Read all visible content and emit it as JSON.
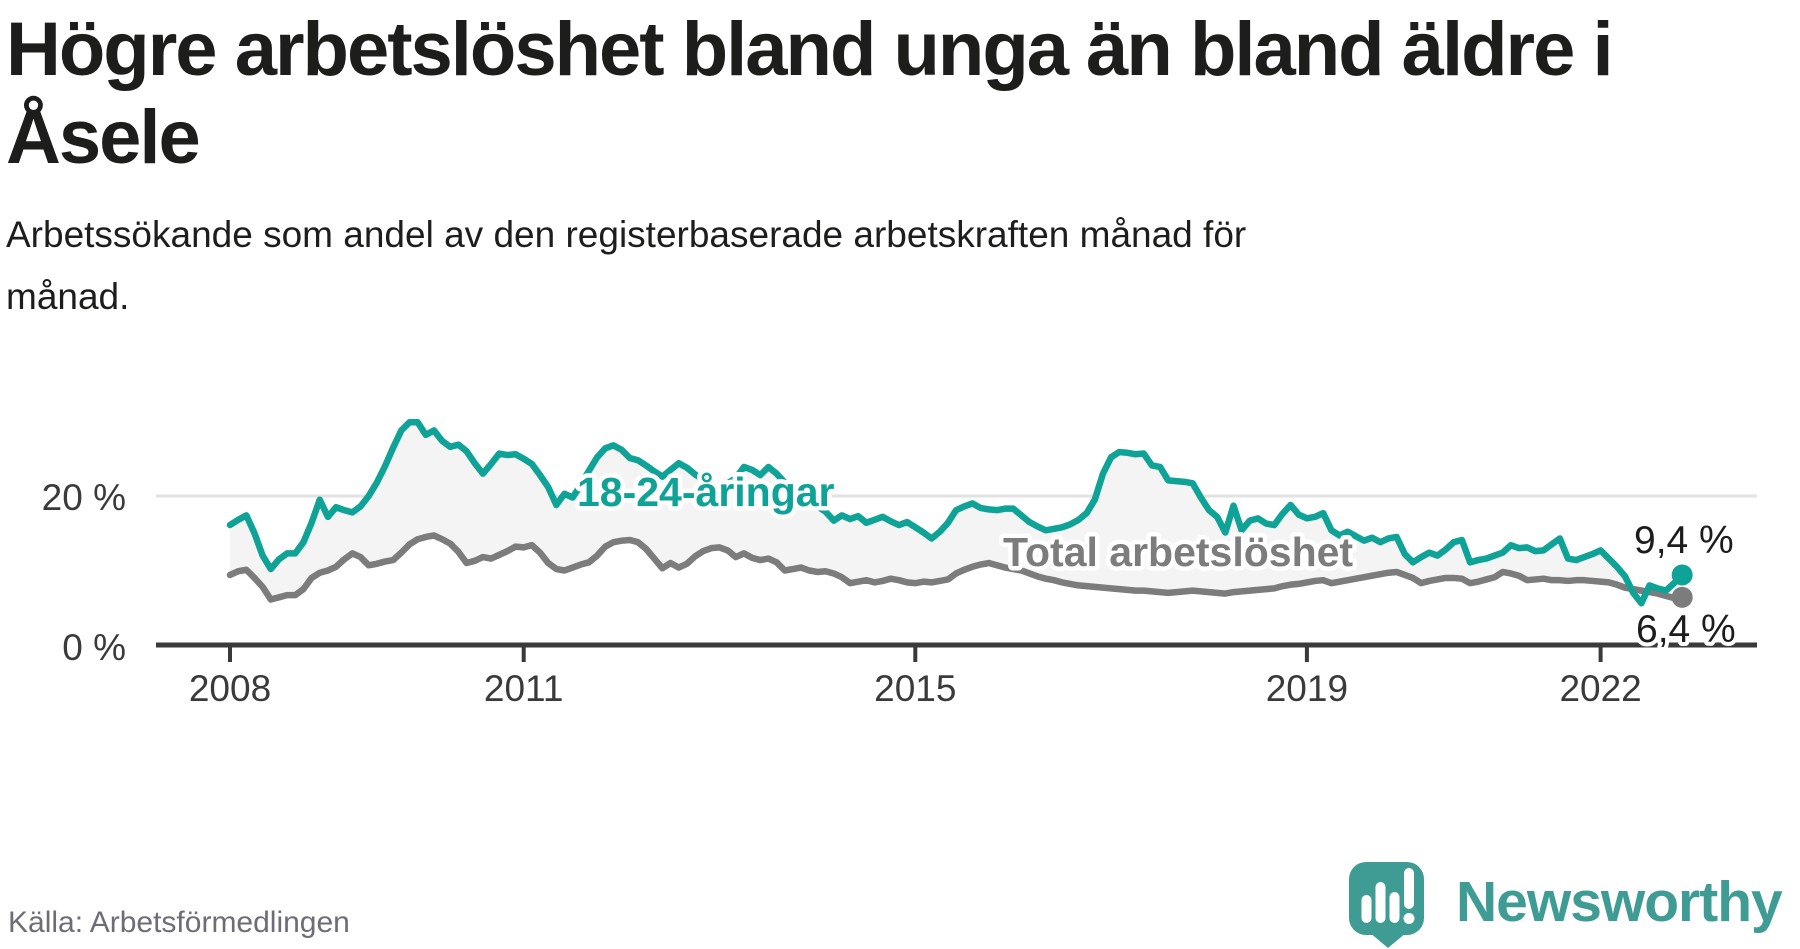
{
  "header": {
    "title_line1": "Högre arbetslöshet bland unga än bland äldre i",
    "title_line2": "Åsele",
    "subtitle_line1": "Arbetssökande som andel av den registerbaserade arbetskraften månad för",
    "subtitle_line2": "månad."
  },
  "footer": {
    "source": "Källa: Arbetsförmedlingen",
    "brand": "Newsworthy"
  },
  "colors": {
    "youth_teal": "#0fa296",
    "total_gray": "#7c7c7c",
    "band_fill": "#f4f4f4",
    "gridline": "#e2e2e2",
    "axis": "#3a3a3a",
    "text_dark": "#1d1d1b",
    "end_label": "#1c1c1c",
    "source_gray": "#6d6d77",
    "logo_teal": "#3f9c95"
  },
  "chart_data": {
    "type": "line",
    "title": "Högre arbetslöshet bland unga än bland äldre i Åsele",
    "subtitle": "Arbetssökande som andel av den registerbaserade arbetskraften månad för månad.",
    "unit": "percent of registered labour force",
    "frequency": "monthly",
    "x_start": "2008-01",
    "x_end": "2022-11",
    "grid": "single horizontal gridline at 20 %",
    "legend_position": "inline labels on lines",
    "ylim": [
      0,
      32
    ],
    "x_ticks": [
      {
        "year": 2008,
        "label": "2008"
      },
      {
        "year": 2011,
        "label": "2011"
      },
      {
        "year": 2015,
        "label": "2015"
      },
      {
        "year": 2019,
        "label": "2019"
      },
      {
        "year": 2022,
        "label": "2022"
      }
    ],
    "y_ticks": [
      {
        "value": 20,
        "label": "20 %"
      },
      {
        "value": 0,
        "label": "0 %"
      }
    ],
    "series": [
      {
        "name": "18-24-åringar",
        "color": "#0fa296",
        "end_value": 9.4,
        "end_label": "9,4 %",
        "values": [
          16.1,
          16.8,
          17.4,
          15.0,
          12.0,
          10.2,
          11.5,
          12.3,
          12.3,
          13.8,
          16.4,
          19.5,
          17.2,
          18.5,
          18.1,
          17.8,
          18.6,
          20.0,
          21.8,
          24.0,
          26.5,
          28.8,
          29.9,
          29.9,
          28.2,
          28.8,
          27.4,
          26.6,
          26.9,
          26.0,
          24.4,
          23.0,
          24.3,
          25.7,
          25.5,
          25.6,
          25.0,
          24.3,
          22.8,
          21.2,
          18.8,
          20.3,
          19.8,
          21.5,
          23.4,
          25.2,
          26.4,
          26.8,
          26.2,
          25.1,
          24.8,
          24.1,
          23.3,
          22.6,
          23.5,
          24.4,
          23.8,
          22.9,
          22.2,
          21.6,
          21.0,
          21.7,
          22.4,
          23.9,
          23.5,
          22.8,
          23.9,
          23.0,
          21.8,
          20.9,
          20.1,
          19.4,
          18.6,
          17.9,
          16.7,
          17.4,
          16.9,
          17.3,
          16.4,
          16.8,
          17.2,
          16.6,
          16.1,
          16.5,
          15.8,
          15.1,
          14.3,
          15.2,
          16.4,
          18.1,
          18.6,
          19.0,
          18.4,
          18.2,
          18.1,
          18.3,
          18.3,
          17.4,
          16.5,
          15.9,
          15.4,
          15.6,
          15.8,
          16.2,
          16.8,
          17.7,
          19.5,
          23.0,
          25.2,
          25.9,
          25.8,
          25.6,
          25.7,
          24.1,
          23.9,
          22.1,
          22.0,
          21.9,
          21.7,
          19.8,
          18.1,
          17.2,
          15.1,
          18.7,
          15.4,
          16.7,
          17.0,
          16.3,
          16.1,
          17.6,
          18.8,
          17.5,
          17.0,
          17.2,
          17.7,
          15.4,
          14.7,
          15.2,
          14.6,
          14.0,
          14.4,
          13.8,
          14.3,
          14.5,
          12.2,
          11.1,
          11.8,
          12.4,
          12.0,
          12.8,
          13.8,
          14.1,
          11.1,
          11.4,
          11.6,
          12.0,
          12.4,
          13.4,
          13.0,
          13.1,
          12.6,
          12.7,
          13.5,
          14.3,
          11.6,
          11.4,
          11.8,
          12.2,
          12.7,
          11.6,
          10.5,
          9.2,
          7.0,
          5.6,
          8.0,
          7.6,
          7.3,
          8.3,
          9.4
        ]
      },
      {
        "name": "Total arbetslöshet",
        "color": "#7c7c7c",
        "end_value": 6.4,
        "end_label": "6,4 %",
        "values": [
          9.4,
          9.9,
          10.1,
          9.0,
          7.8,
          6.1,
          6.4,
          6.7,
          6.7,
          7.5,
          9.0,
          9.7,
          10.0,
          10.5,
          11.5,
          12.3,
          11.8,
          10.7,
          10.9,
          11.2,
          11.4,
          12.4,
          13.5,
          14.2,
          14.5,
          14.7,
          14.2,
          13.6,
          12.5,
          11.0,
          11.3,
          11.8,
          11.6,
          12.1,
          12.6,
          13.2,
          13.1,
          13.4,
          12.4,
          11.0,
          10.2,
          10.0,
          10.4,
          10.8,
          11.1,
          12.0,
          13.2,
          13.8,
          14.0,
          14.1,
          13.8,
          12.9,
          11.6,
          10.3,
          11.0,
          10.4,
          10.9,
          11.9,
          12.6,
          13.0,
          13.1,
          12.7,
          11.8,
          12.3,
          11.7,
          11.4,
          11.6,
          11.1,
          10.0,
          10.2,
          10.4,
          10.0,
          9.8,
          9.9,
          9.6,
          9.1,
          8.3,
          8.5,
          8.7,
          8.4,
          8.6,
          8.9,
          8.7,
          8.4,
          8.3,
          8.5,
          8.4,
          8.6,
          8.8,
          9.6,
          10.1,
          10.5,
          10.8,
          11.0,
          10.7,
          10.4,
          10.2,
          10.0,
          9.6,
          9.2,
          8.9,
          8.7,
          8.4,
          8.2,
          8.0,
          7.9,
          7.8,
          7.7,
          7.6,
          7.5,
          7.4,
          7.3,
          7.3,
          7.2,
          7.1,
          7.0,
          7.1,
          7.2,
          7.3,
          7.2,
          7.1,
          7.0,
          6.9,
          7.1,
          7.2,
          7.3,
          7.4,
          7.5,
          7.6,
          7.9,
          8.1,
          8.2,
          8.4,
          8.6,
          8.7,
          8.3,
          8.5,
          8.7,
          8.9,
          9.1,
          9.3,
          9.5,
          9.7,
          9.8,
          9.4,
          9.0,
          8.3,
          8.6,
          8.8,
          9.0,
          9.0,
          8.9,
          8.3,
          8.5,
          8.8,
          9.1,
          9.8,
          9.6,
          9.3,
          8.7,
          8.8,
          8.9,
          8.7,
          8.7,
          8.6,
          8.7,
          8.7,
          8.6,
          8.5,
          8.4,
          8.1,
          7.7,
          7.5,
          7.3,
          7.1,
          6.9,
          6.6,
          6.3,
          6.4
        ]
      }
    ]
  }
}
